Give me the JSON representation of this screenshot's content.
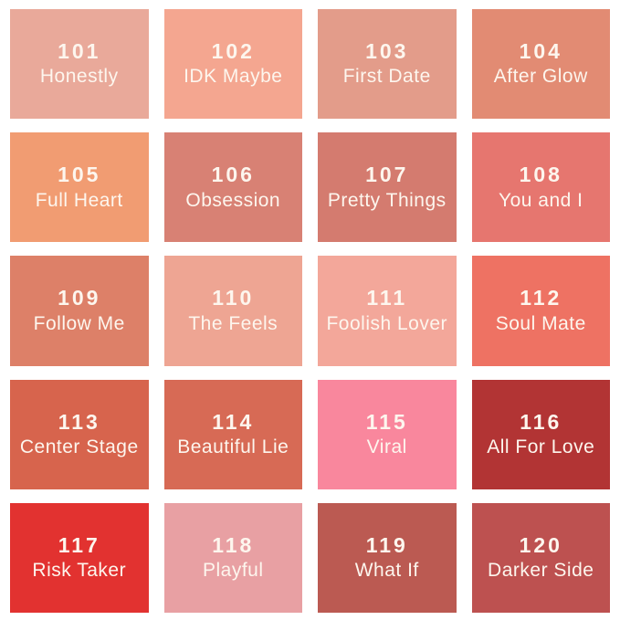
{
  "canvas": {
    "background": "#ffffff",
    "text_color": "#fdf6ee"
  },
  "chart_data": {
    "type": "table",
    "title": "",
    "columns": [
      "number",
      "name",
      "color"
    ],
    "rows": [
      {
        "number": "101",
        "name": "Honestly",
        "color": "#e9a99a"
      },
      {
        "number": "102",
        "name": "IDK Maybe",
        "color": "#f4a690"
      },
      {
        "number": "103",
        "name": "First Date",
        "color": "#e39c8a"
      },
      {
        "number": "104",
        "name": "After Glow",
        "color": "#e28b73"
      },
      {
        "number": "105",
        "name": "Full Heart",
        "color": "#f19c72"
      },
      {
        "number": "106",
        "name": "Obsession",
        "color": "#d88174"
      },
      {
        "number": "107",
        "name": "Pretty Things",
        "color": "#d47b6f"
      },
      {
        "number": "108",
        "name": "You and I",
        "color": "#e6766f"
      },
      {
        "number": "109",
        "name": "Follow Me",
        "color": "#dd8068"
      },
      {
        "number": "110",
        "name": "The Feels",
        "color": "#eea593"
      },
      {
        "number": "111",
        "name": "Foolish Lover",
        "color": "#f3a79a"
      },
      {
        "number": "112",
        "name": "Soul Mate",
        "color": "#ee7263"
      },
      {
        "number": "113",
        "name": "Center Stage",
        "color": "#d7644d"
      },
      {
        "number": "114",
        "name": "Beautiful Lie",
        "color": "#d76a55"
      },
      {
        "number": "115",
        "name": "Viral",
        "color": "#f9879d"
      },
      {
        "number": "116",
        "name": "All For Love",
        "color": "#b23434"
      },
      {
        "number": "117",
        "name": "Risk Taker",
        "color": "#e23230"
      },
      {
        "number": "118",
        "name": "Playful",
        "color": "#e8a0a3"
      },
      {
        "number": "119",
        "name": "What If",
        "color": "#bb5a52"
      },
      {
        "number": "120",
        "name": "Darker Side",
        "color": "#bd5150"
      }
    ]
  }
}
